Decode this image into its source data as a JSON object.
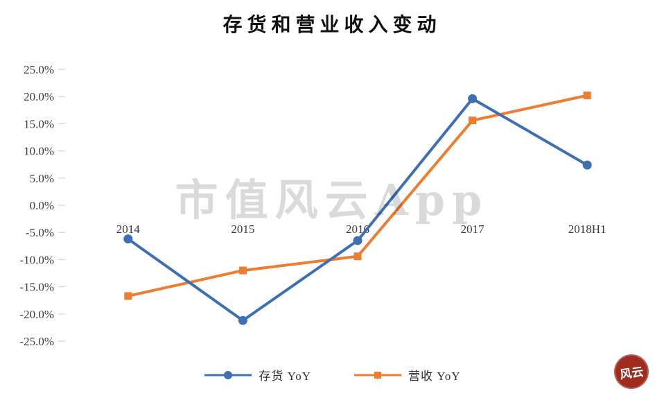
{
  "page": {
    "title": "存货和营业收入变动",
    "watermark": "市值风云App",
    "seal_text": "风云"
  },
  "chart_data": {
    "type": "line",
    "title": "存货和营业收入变动",
    "categories": [
      "2014",
      "2015",
      "2016",
      "2017",
      "2018H1"
    ],
    "series": [
      {
        "name": "存货 YoY",
        "color": "#3E6FB4",
        "marker": "circle",
        "values": [
          -6.2,
          -21.2,
          -6.5,
          19.6,
          7.4
        ]
      },
      {
        "name": "营收 YoY",
        "color": "#ED7D31",
        "marker": "square",
        "values": [
          -16.7,
          -12.0,
          -9.4,
          15.6,
          20.2
        ]
      }
    ],
    "xlabel": "",
    "ylabel": "",
    "ylim": [
      -25,
      25
    ],
    "y_tick_step": 5,
    "y_tick_labels": [
      "25.0%",
      "20.0%",
      "15.0%",
      "10.0%",
      "5.0%",
      "0.0%",
      "-5.0%",
      "-10.0%",
      "-15.0%",
      "-20.0%",
      "-25.0%"
    ],
    "grid": false,
    "legend_position": "bottom"
  }
}
